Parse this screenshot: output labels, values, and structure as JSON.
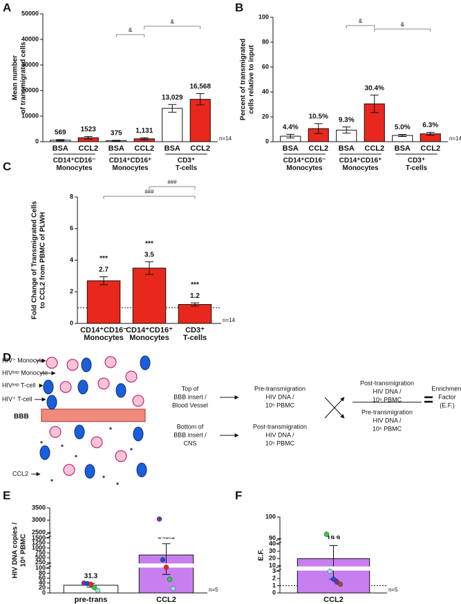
{
  "chart_data": [
    {
      "type": "bar",
      "label": "A",
      "ylabel": [
        "Mean number",
        "of transmigrated cells"
      ],
      "categories": [
        "BSA",
        "CCL2",
        "BSA",
        "CCL2",
        "BSA",
        "CCL2"
      ],
      "groups": [
        "CD14⁺CD16⁻ Monocytes",
        "CD14⁺CD16⁺ Monocytes",
        "CD3⁺ T-cells"
      ],
      "values": [
        569,
        1523,
        375,
        1131,
        13029,
        16568
      ],
      "errors": [
        250,
        500,
        150,
        400,
        1500,
        2200
      ],
      "value_labels": [
        "569",
        "1523",
        "375",
        "1,131",
        "13,029",
        "16,568"
      ],
      "colors": [
        "#ffffff",
        "#e8281c",
        "#ffffff",
        "#e8281c",
        "#ffffff",
        "#e8281c"
      ],
      "ylim": [
        0,
        50000
      ],
      "yticks": [
        0,
        10000,
        20000,
        30000,
        40000,
        50000
      ],
      "annotations": [
        "&",
        "&"
      ],
      "note": "n=14"
    },
    {
      "type": "bar",
      "label": "B",
      "ylabel": [
        "Percent of transmigrated",
        "cells relative to input"
      ],
      "categories": [
        "BSA",
        "CCL2",
        "BSA",
        "CCL2",
        "BSA",
        "CCL2"
      ],
      "groups": [
        "CD14⁺CD16⁻ Monocytes",
        "CD14⁺CD16⁺ Monocytes",
        "CD3⁺ T-cells"
      ],
      "values": [
        4.4,
        10.5,
        9.3,
        30.4,
        5.0,
        6.3
      ],
      "errors": [
        1.5,
        4,
        2.5,
        7,
        0.8,
        1.2
      ],
      "value_labels": [
        "4.4%",
        "10.5%",
        "9.3%",
        "30.4%",
        "5.0%",
        "6.3%"
      ],
      "colors": [
        "#ffffff",
        "#e8281c",
        "#ffffff",
        "#e8281c",
        "#ffffff",
        "#e8281c"
      ],
      "ylim": [
        0,
        100
      ],
      "yticks": [
        0,
        20,
        40,
        60,
        80,
        100
      ],
      "annotations": [
        "&",
        "&"
      ],
      "note": "n=14"
    },
    {
      "type": "bar",
      "label": "C",
      "ylabel": [
        "Fold Change of Transmigrated Cells",
        "to CCL2 from PBMC of PLWH"
      ],
      "categories": [
        "CD14⁺CD16⁻ Monocytes",
        "CD14⁺CD16⁺ Monocytes",
        "CD3⁺ T-cells"
      ],
      "values": [
        2.7,
        3.5,
        1.2
      ],
      "errors": [
        0.25,
        0.4,
        0.1
      ],
      "colors": [
        "#e8281c",
        "#e8281c",
        "#e8281c"
      ],
      "stars": [
        "***",
        "***",
        "***"
      ],
      "ylim": [
        0,
        8
      ],
      "yticks": [
        0,
        2,
        4,
        6,
        8
      ],
      "refline": 1,
      "annotations": [
        "###",
        "###"
      ],
      "note": "n=14"
    },
    {
      "type": "bar",
      "label": "E",
      "ylabel": [
        "HIV DNA copies /",
        "10⁶ PBMC"
      ],
      "categories": [
        "pre-trans",
        "CCL2"
      ],
      "values": [
        31.3,
        645.1
      ],
      "errors": [
        8,
        570
      ],
      "value_labels": [
        "31.3",
        "645.1"
      ],
      "colors": [
        "#ffffff",
        "#c77ff0"
      ],
      "points": [
        [
          40,
          38,
          35,
          22,
          10
        ],
        [
          3050,
          400,
          130,
          55,
          18
        ]
      ],
      "point_colors": [
        "#7b2fa8",
        "#1a4fd8",
        "#e8281c",
        "#2ecc40",
        "#8ee6d8"
      ],
      "ylim": [
        0,
        3500
      ],
      "ysegments": [
        [
          0,
          100
        ],
        [
          250,
          1500
        ],
        [
          2500,
          3500
        ]
      ],
      "yticks": [
        0,
        20,
        40,
        60,
        80,
        100,
        250,
        500,
        750,
        1000,
        1250,
        1500,
        2500,
        3000,
        3500
      ],
      "note": "n=5"
    },
    {
      "type": "bar",
      "label": "F",
      "ylabel": [
        "E.F."
      ],
      "categories": [
        "CCL2"
      ],
      "values": [
        19.9
      ],
      "errors": [
        18
      ],
      "value_labels": [
        "19.9"
      ],
      "colors": [
        "#c77ff0"
      ],
      "points": [
        [
          92,
          3,
          1.9,
          1.5,
          1.2
        ]
      ],
      "point_colors": [
        "#2ecc40",
        "#8ee6d8",
        "#1a4fd8",
        "#7b2fa8",
        "#a0522d"
      ],
      "ylim": [
        0,
        100
      ],
      "ysegments": [
        [
          0,
          3
        ],
        [
          10,
          40
        ],
        [
          90,
          100
        ]
      ],
      "yticks": [
        0,
        1,
        2,
        3,
        10,
        20,
        30,
        40,
        90,
        100
      ],
      "refline": 1,
      "note": "n=5"
    }
  ],
  "diagram": {
    "label": "D",
    "cells": [
      "HIV⁺ Monocyte",
      "HIVᵉˣᵖ Monocyte",
      "HIVᵉˣᵖ T-cell",
      "HIV⁺ T-cell",
      "BBB",
      "CCL2"
    ],
    "top": [
      "Top of",
      "BBB insert /",
      "Blood Vessel"
    ],
    "bottom": [
      "Bottom of",
      "BBB insert /",
      "CNS"
    ],
    "pre": [
      "Pre-transmigration",
      "HIV DNA /",
      "10⁵ PBMC"
    ],
    "post": [
      "Post-transmigration",
      "HIV DNA /",
      "10⁵ PBMC"
    ],
    "numerator": [
      "Post-transmigration",
      "HIV DNA /",
      "10⁵ PBMC"
    ],
    "denominator": [
      "Pre-transmigration",
      "HIV DNA /",
      "10⁵ PBMC"
    ],
    "equals": "=",
    "result": [
      "Enrichment",
      "Factor",
      "(E.F.)"
    ]
  }
}
